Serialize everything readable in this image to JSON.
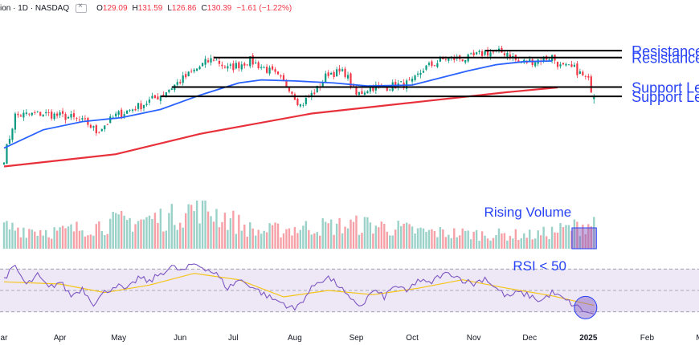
{
  "header": {
    "symbol_fragment": "ion · 1D · NASDAQ",
    "fav_icon": "bookmark-icon",
    "ohlc": [
      {
        "k": "O",
        "v": "129.09"
      },
      {
        "k": "H",
        "v": "131.59"
      },
      {
        "k": "L",
        "v": "126.86"
      },
      {
        "k": "C",
        "v": "130.39"
      }
    ],
    "change": "−1.61 (−1.22%)",
    "change_color": "#f23645"
  },
  "colors": {
    "up": "#089981",
    "down": "#f23645",
    "ma50": "#2962ff",
    "ma200": "#e8303b",
    "annotation": "#2842f5",
    "rsi": "#7e57c2",
    "rsi_ma": "#f5c518",
    "rsi_band": "#ede7f6"
  },
  "annotations": {
    "resistance_1": "Resistance Level: $",
    "resistance_2": "Resistance Level: $",
    "support_1": "Support Level: $",
    "support_2": "Support Level: $",
    "rising_volume": "Rising Volume",
    "rsi_note": "RSI < 50"
  },
  "chart_data": [
    {
      "type": "candlestick",
      "title": "",
      "x": [
        "Mar",
        "Apr",
        "May",
        "Jun",
        "Jul",
        "Aug",
        "Sep",
        "Oct",
        "Nov",
        "Dec",
        "2025",
        "Feb",
        "Mar"
      ],
      "x_labels": [
        {
          "label": "ar",
          "i": 0
        },
        {
          "label": "Apr",
          "i": 20
        },
        {
          "label": "May",
          "i": 41
        },
        {
          "label": "Jun",
          "i": 63
        },
        {
          "label": "Jul",
          "i": 82
        },
        {
          "label": "Aug",
          "i": 104
        },
        {
          "label": "Sep",
          "i": 126
        },
        {
          "label": "Oct",
          "i": 146
        },
        {
          "label": "Nov",
          "i": 168
        },
        {
          "label": "Dec",
          "i": 188
        },
        {
          "label": "2025",
          "i": 209
        },
        {
          "label": "Feb",
          "i": 230
        },
        {
          "label": "Mar",
          "i": 250
        }
      ],
      "ylim": [
        95,
        162
      ],
      "levels": [
        {
          "name": "resistance_1",
          "value": 152.9,
          "from_i": 172,
          "to_i": 221
        },
        {
          "name": "resistance_2",
          "value": 149.5,
          "from_i": 75,
          "to_i": 221
        },
        {
          "name": "support_1",
          "value": 135.0,
          "from_i": 60,
          "to_i": 221
        },
        {
          "name": "support_2",
          "value": 130.4,
          "from_i": 56,
          "to_i": 221
        }
      ],
      "key_points": [
        {
          "i": 0,
          "close": 100
        },
        {
          "i": 4,
          "close": 121
        },
        {
          "i": 14,
          "close": 122
        },
        {
          "i": 24,
          "close": 120
        },
        {
          "i": 30,
          "close": 117
        },
        {
          "i": 33,
          "close": 113
        },
        {
          "i": 40,
          "close": 121
        },
        {
          "i": 49,
          "close": 126
        },
        {
          "i": 56,
          "close": 131
        },
        {
          "i": 60,
          "close": 135
        },
        {
          "i": 66,
          "close": 141
        },
        {
          "i": 72,
          "close": 147
        },
        {
          "i": 75,
          "close": 149
        },
        {
          "i": 80,
          "close": 144
        },
        {
          "i": 88,
          "close": 148
        },
        {
          "i": 96,
          "close": 142
        },
        {
          "i": 102,
          "close": 135
        },
        {
          "i": 106,
          "close": 126
        },
        {
          "i": 112,
          "close": 134
        },
        {
          "i": 116,
          "close": 142
        },
        {
          "i": 122,
          "close": 142
        },
        {
          "i": 126,
          "close": 131
        },
        {
          "i": 131,
          "close": 135
        },
        {
          "i": 136,
          "close": 135
        },
        {
          "i": 146,
          "close": 137
        },
        {
          "i": 150,
          "close": 144
        },
        {
          "i": 158,
          "close": 149
        },
        {
          "i": 166,
          "close": 149
        },
        {
          "i": 172,
          "close": 152
        },
        {
          "i": 180,
          "close": 152
        },
        {
          "i": 184,
          "close": 147
        },
        {
          "i": 190,
          "close": 148
        },
        {
          "i": 196,
          "close": 150
        },
        {
          "i": 199,
          "close": 145
        },
        {
          "i": 204,
          "close": 144
        },
        {
          "i": 209,
          "close": 138
        },
        {
          "i": 211,
          "close": 130.39
        }
      ],
      "ma50_points": [
        {
          "i": 0,
          "v": 105
        },
        {
          "i": 14,
          "v": 114
        },
        {
          "i": 28,
          "v": 118
        },
        {
          "i": 42,
          "v": 120
        },
        {
          "i": 56,
          "v": 124
        },
        {
          "i": 70,
          "v": 131
        },
        {
          "i": 84,
          "v": 137
        },
        {
          "i": 92,
          "v": 138.5
        },
        {
          "i": 104,
          "v": 138
        },
        {
          "i": 118,
          "v": 137
        },
        {
          "i": 130,
          "v": 135.5
        },
        {
          "i": 146,
          "v": 136
        },
        {
          "i": 156,
          "v": 139.5
        },
        {
          "i": 166,
          "v": 143
        },
        {
          "i": 176,
          "v": 146
        },
        {
          "i": 186,
          "v": 147.5
        },
        {
          "i": 196,
          "v": 147.8
        }
      ],
      "ma200_points": [
        {
          "i": 0,
          "v": 96
        },
        {
          "i": 40,
          "v": 102
        },
        {
          "i": 70,
          "v": 112
        },
        {
          "i": 110,
          "v": 122
        },
        {
          "i": 150,
          "v": 128
        },
        {
          "i": 180,
          "v": 132.5
        },
        {
          "i": 198,
          "v": 134.8
        }
      ],
      "grid": false,
      "legend": "none"
    },
    {
      "type": "bar",
      "title": "",
      "series": [
        {
          "values_peak_ratio": 1.0
        }
      ],
      "volume_trend_points": [
        {
          "i": 0,
          "v": 0.45
        },
        {
          "i": 20,
          "v": 0.35
        },
        {
          "i": 40,
          "v": 0.55
        },
        {
          "i": 60,
          "v": 0.65
        },
        {
          "i": 70,
          "v": 0.9
        },
        {
          "i": 90,
          "v": 0.35
        },
        {
          "i": 110,
          "v": 0.45
        },
        {
          "i": 130,
          "v": 0.5
        },
        {
          "i": 150,
          "v": 0.35
        },
        {
          "i": 170,
          "v": 0.3
        },
        {
          "i": 190,
          "v": 0.28
        },
        {
          "i": 204,
          "v": 0.45
        },
        {
          "i": 211,
          "v": 0.55
        }
      ],
      "highlight_from_i": 204,
      "highlight_to_i": 211
    },
    {
      "type": "line",
      "title": "",
      "ylim": [
        20,
        80
      ],
      "band": [
        30,
        70
      ],
      "levels": [
        70,
        50,
        30
      ],
      "rsi_points": [
        {
          "i": 0,
          "v": 62
        },
        {
          "i": 4,
          "v": 72
        },
        {
          "i": 8,
          "v": 55
        },
        {
          "i": 12,
          "v": 64
        },
        {
          "i": 16,
          "v": 52
        },
        {
          "i": 20,
          "v": 58
        },
        {
          "i": 24,
          "v": 45
        },
        {
          "i": 28,
          "v": 52
        },
        {
          "i": 32,
          "v": 38
        },
        {
          "i": 36,
          "v": 48
        },
        {
          "i": 40,
          "v": 55
        },
        {
          "i": 44,
          "v": 50
        },
        {
          "i": 48,
          "v": 62
        },
        {
          "i": 52,
          "v": 58
        },
        {
          "i": 56,
          "v": 66
        },
        {
          "i": 60,
          "v": 72
        },
        {
          "i": 64,
          "v": 68
        },
        {
          "i": 68,
          "v": 75
        },
        {
          "i": 72,
          "v": 71
        },
        {
          "i": 76,
          "v": 65
        },
        {
          "i": 80,
          "v": 52
        },
        {
          "i": 84,
          "v": 60
        },
        {
          "i": 88,
          "v": 55
        },
        {
          "i": 92,
          "v": 48
        },
        {
          "i": 96,
          "v": 42
        },
        {
          "i": 100,
          "v": 38
        },
        {
          "i": 104,
          "v": 32
        },
        {
          "i": 108,
          "v": 45
        },
        {
          "i": 112,
          "v": 58
        },
        {
          "i": 116,
          "v": 62
        },
        {
          "i": 120,
          "v": 54
        },
        {
          "i": 124,
          "v": 40
        },
        {
          "i": 128,
          "v": 36
        },
        {
          "i": 132,
          "v": 50
        },
        {
          "i": 136,
          "v": 44
        },
        {
          "i": 140,
          "v": 55
        },
        {
          "i": 144,
          "v": 48
        },
        {
          "i": 148,
          "v": 60
        },
        {
          "i": 152,
          "v": 56
        },
        {
          "i": 156,
          "v": 64
        },
        {
          "i": 160,
          "v": 66
        },
        {
          "i": 164,
          "v": 60
        },
        {
          "i": 168,
          "v": 56
        },
        {
          "i": 172,
          "v": 62
        },
        {
          "i": 176,
          "v": 52
        },
        {
          "i": 180,
          "v": 44
        },
        {
          "i": 184,
          "v": 48
        },
        {
          "i": 188,
          "v": 45
        },
        {
          "i": 192,
          "v": 40
        },
        {
          "i": 196,
          "v": 48
        },
        {
          "i": 200,
          "v": 42
        },
        {
          "i": 204,
          "v": 36
        },
        {
          "i": 208,
          "v": 30
        },
        {
          "i": 211,
          "v": 28
        }
      ],
      "rsi_ma_points": [
        {
          "i": 0,
          "v": 58
        },
        {
          "i": 20,
          "v": 56
        },
        {
          "i": 36,
          "v": 48
        },
        {
          "i": 52,
          "v": 55
        },
        {
          "i": 68,
          "v": 66
        },
        {
          "i": 84,
          "v": 60
        },
        {
          "i": 100,
          "v": 44
        },
        {
          "i": 116,
          "v": 50
        },
        {
          "i": 132,
          "v": 46
        },
        {
          "i": 148,
          "v": 52
        },
        {
          "i": 164,
          "v": 60
        },
        {
          "i": 180,
          "v": 52
        },
        {
          "i": 196,
          "v": 45
        },
        {
          "i": 211,
          "v": 36
        }
      ],
      "highlight": {
        "i": 208,
        "v": 34
      }
    }
  ]
}
